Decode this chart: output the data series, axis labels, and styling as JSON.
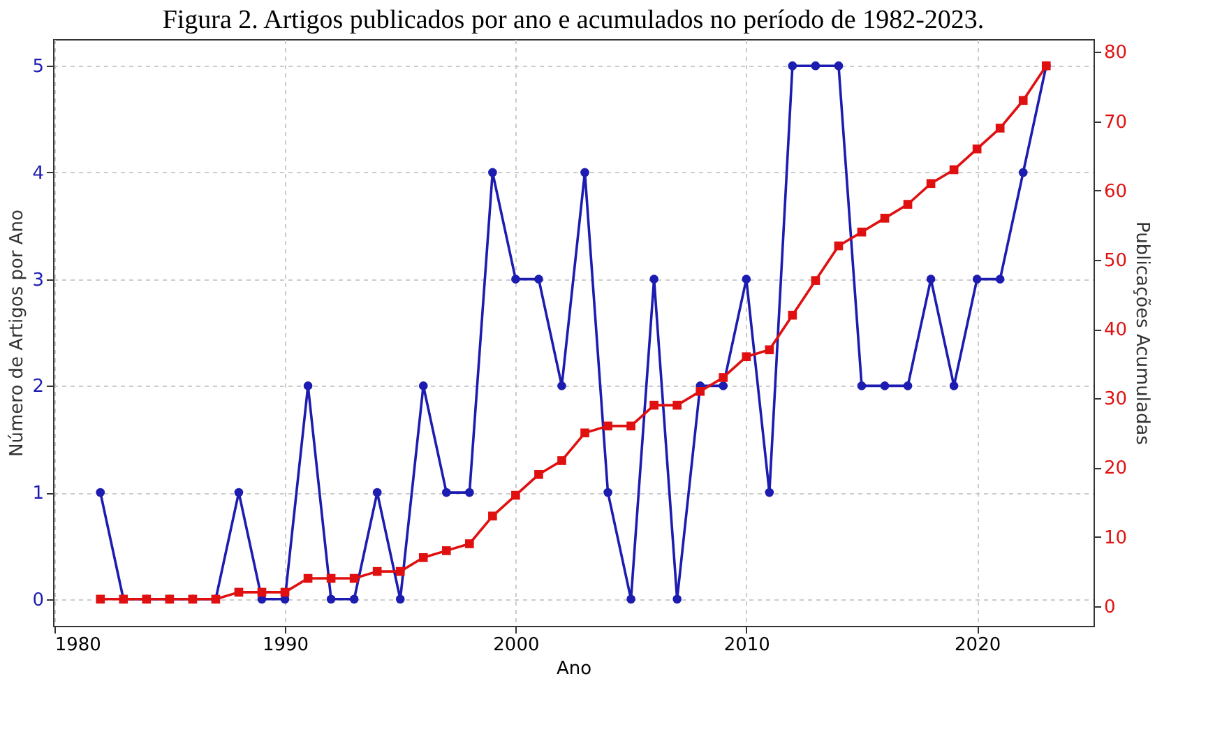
{
  "chart_data": {
    "type": "line",
    "title": "Figura 2. Artigos publicados por ano e acumulados no período de 1982-2023.",
    "xlabel": "Ano",
    "ylabel": "Número de Artigos por Ano",
    "y2label": "Publicações Acumuladas",
    "x": [
      1982,
      1983,
      1984,
      1985,
      1986,
      1987,
      1988,
      1989,
      1990,
      1991,
      1992,
      1993,
      1994,
      1995,
      1996,
      1997,
      1998,
      1999,
      2000,
      2001,
      2002,
      2003,
      2004,
      2005,
      2006,
      2007,
      2008,
      2009,
      2010,
      2011,
      2012,
      2013,
      2014,
      2015,
      2016,
      2017,
      2018,
      2019,
      2020,
      2021,
      2022,
      2023
    ],
    "series": [
      {
        "color": "#1c1cb0",
        "marker": "circle",
        "values": [
          1,
          0,
          0,
          0,
          0,
          0,
          1,
          0,
          0,
          2,
          0,
          0,
          1,
          0,
          2,
          1,
          1,
          4,
          3,
          3,
          2,
          4,
          1,
          0,
          3,
          0,
          2,
          2,
          3,
          1,
          5,
          5,
          5,
          2,
          2,
          2,
          3,
          2,
          3,
          3,
          4,
          5
        ]
      },
      {
        "color": "#e01010",
        "marker": "square",
        "axis": "y2",
        "values": [
          1,
          1,
          1,
          1,
          1,
          1,
          2,
          2,
          2,
          4,
          4,
          4,
          5,
          5,
          7,
          8,
          9,
          13,
          16,
          19,
          21,
          25,
          26,
          26,
          29,
          29,
          31,
          33,
          36,
          37,
          42,
          47,
          52,
          54,
          56,
          58,
          61,
          63,
          66,
          69,
          73,
          78
        ]
      }
    ],
    "xlim": [
      1979.95,
      2025.05
    ],
    "xticks": [
      1980,
      1990,
      2000,
      2010,
      2020
    ],
    "ylim": [
      -0.25,
      5.25
    ],
    "yticks": [
      0,
      1,
      2,
      3,
      4,
      5
    ],
    "y2lim": [
      -2.85,
      81.85
    ],
    "y2ticks": [
      0,
      10,
      20,
      30,
      40,
      50,
      60,
      70,
      80
    ],
    "grid": true,
    "line_style": "solid"
  }
}
